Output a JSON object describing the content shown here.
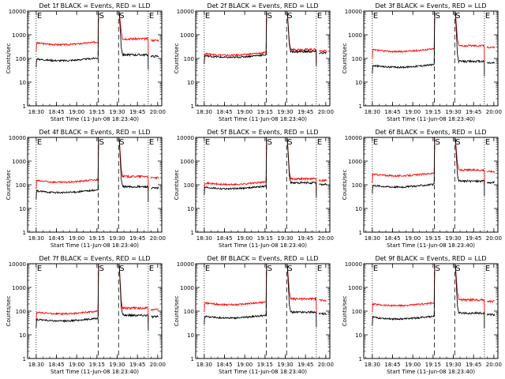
{
  "common": {
    "ylabel": "Counts/sec",
    "xlabel": "Start Time (11-Jun-08 18:23:40)",
    "title_suffix": "BLACK = Events, RED = LLD",
    "yticks": [
      "1",
      "10",
      "100",
      "1000",
      "10000"
    ],
    "xticks": [
      "18:30",
      "18:45",
      "19:00",
      "19:15",
      "19:30",
      "19:45",
      "20:00"
    ],
    "markers": {
      "e": "E",
      "s": "S"
    },
    "colors": {
      "events": "#000000",
      "lld": "#ff0000"
    }
  },
  "chart_data": [
    {
      "type": "line",
      "title": "Det 1f BLACK = Events, RED = LLD",
      "ylim": [
        1,
        10000
      ],
      "ylog": true,
      "xlim": [
        "18:23:40",
        "20:03:00"
      ],
      "events_level": 95,
      "lld_level": 450,
      "markers": [
        {
          "time": "18:30",
          "label": "E"
        },
        {
          "time": "19:16",
          "label": "S"
        },
        {
          "time": "19:31",
          "label": "S"
        },
        {
          "time": "19:53",
          "label": "E"
        }
      ]
    },
    {
      "type": "line",
      "title": "Det 2f BLACK = Events, RED = LLD",
      "ylim": [
        1,
        10000
      ],
      "ylog": true,
      "xlim": [
        "18:23:40",
        "20:03:00"
      ],
      "events_level": 130,
      "lld_level": 160,
      "markers": [
        {
          "time": "18:30",
          "label": "E"
        },
        {
          "time": "19:16",
          "label": "S"
        },
        {
          "time": "19:31",
          "label": "S"
        },
        {
          "time": "19:53",
          "label": "E"
        }
      ]
    },
    {
      "type": "line",
      "title": "Det 3f BLACK = Events, RED = LLD",
      "ylim": [
        1,
        10000
      ],
      "ylog": true,
      "xlim": [
        "18:23:40",
        "20:03:00"
      ],
      "events_level": 50,
      "lld_level": 230,
      "markers": [
        {
          "time": "18:30",
          "label": "E"
        },
        {
          "time": "19:16",
          "label": "S"
        },
        {
          "time": "19:31",
          "label": "S"
        },
        {
          "time": "19:53",
          "label": "E"
        }
      ]
    },
    {
      "type": "line",
      "title": "Det 4f BLACK = Events, RED = LLD",
      "ylim": [
        1,
        10000
      ],
      "ylog": true,
      "xlim": [
        "18:23:40",
        "20:03:00"
      ],
      "events_level": 55,
      "lld_level": 150,
      "markers": [
        {
          "time": "18:30",
          "label": "E"
        },
        {
          "time": "19:16",
          "label": "S"
        },
        {
          "time": "19:31",
          "label": "S"
        },
        {
          "time": "19:53",
          "label": "E"
        }
      ]
    },
    {
      "type": "line",
      "title": "Det 5f BLACK = Events, RED = LLD",
      "ylim": [
        1,
        10000
      ],
      "ylog": true,
      "xlim": [
        "18:23:40",
        "20:03:00"
      ],
      "events_level": 80,
      "lld_level": 120,
      "markers": [
        {
          "time": "18:30",
          "label": "E"
        },
        {
          "time": "19:16",
          "label": "S"
        },
        {
          "time": "19:31",
          "label": "S"
        },
        {
          "time": "19:53",
          "label": "E"
        }
      ]
    },
    {
      "type": "line",
      "title": "Det 6f BLACK = Events, RED = LLD",
      "ylim": [
        1,
        10000
      ],
      "ylog": true,
      "xlim": [
        "18:23:40",
        "20:03:00"
      ],
      "events_level": 95,
      "lld_level": 280,
      "markers": [
        {
          "time": "18:30",
          "label": "E"
        },
        {
          "time": "19:16",
          "label": "S"
        },
        {
          "time": "19:31",
          "label": "S"
        },
        {
          "time": "19:53",
          "label": "E"
        }
      ]
    },
    {
      "type": "line",
      "title": "Det 7f BLACK = Events, RED = LLD",
      "ylim": [
        1,
        10000
      ],
      "ylog": true,
      "xlim": [
        "18:23:40",
        "20:03:00"
      ],
      "events_level": 45,
      "lld_level": 90,
      "markers": [
        {
          "time": "18:30",
          "label": "E"
        },
        {
          "time": "19:16",
          "label": "S"
        },
        {
          "time": "19:31",
          "label": "S"
        },
        {
          "time": "19:53",
          "label": "E"
        }
      ]
    },
    {
      "type": "line",
      "title": "Det 8f BLACK = Events, RED = LLD",
      "ylim": [
        1,
        10000
      ],
      "ylog": true,
      "xlim": [
        "18:23:40",
        "20:03:00"
      ],
      "events_level": 60,
      "lld_level": 220,
      "markers": [
        {
          "time": "18:30",
          "label": "E"
        },
        {
          "time": "19:16",
          "label": "S"
        },
        {
          "time": "19:31",
          "label": "S"
        },
        {
          "time": "19:53",
          "label": "E"
        }
      ]
    },
    {
      "type": "line",
      "title": "Det 9f BLACK = Events, RED = LLD",
      "ylim": [
        1,
        10000
      ],
      "ylog": true,
      "xlim": [
        "18:23:40",
        "20:03:00"
      ],
      "events_level": 55,
      "lld_level": 200,
      "markers": [
        {
          "time": "18:30",
          "label": "E"
        },
        {
          "time": "19:16",
          "label": "S"
        },
        {
          "time": "19:31",
          "label": "S"
        },
        {
          "time": "19:53",
          "label": "E"
        }
      ]
    }
  ]
}
